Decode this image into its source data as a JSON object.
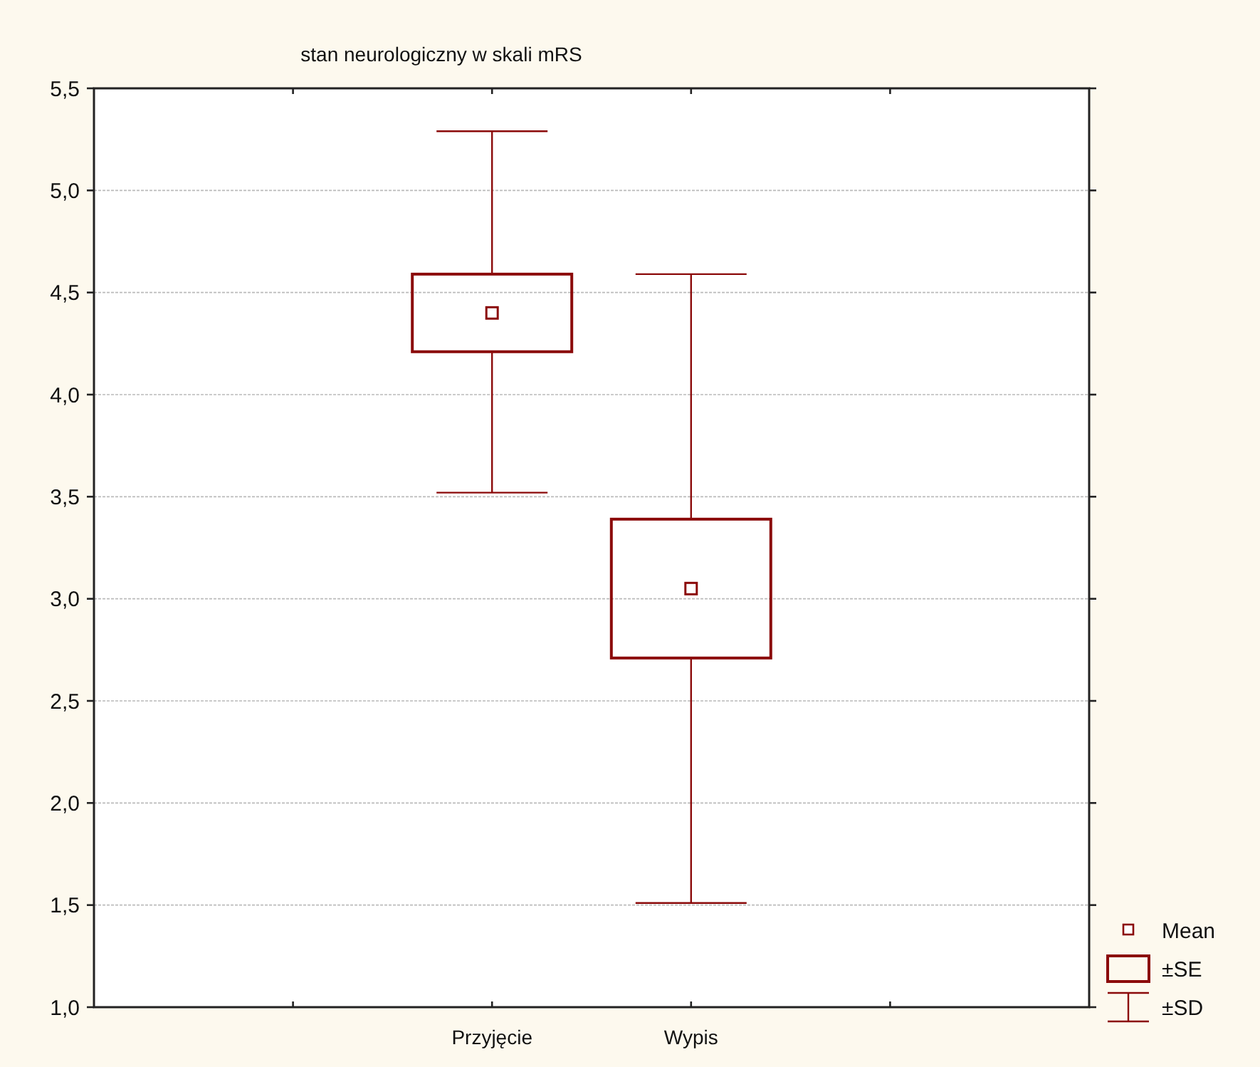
{
  "chart_data": {
    "type": "box",
    "title": "stan neurologiczny w skali mRS",
    "categories": [
      null,
      "Przyjęcie",
      "Wypis",
      null
    ],
    "color": "#8b0a0a",
    "boxes": [
      null,
      {
        "low": 3.52,
        "q1": 4.21,
        "q3": 4.59,
        "high": 5.29,
        "mean": 4.4
      },
      {
        "low": 1.51,
        "q1": 2.71,
        "q3": 3.39,
        "high": 4.59,
        "mean": 3.05
      },
      null
    ],
    "ylim": [
      1,
      5.5
    ],
    "yticks": [
      {
        "value": 1,
        "label": "1,0"
      },
      {
        "value": 1.5,
        "label": "1,5"
      },
      {
        "value": 2,
        "label": "2,0"
      },
      {
        "value": 2.5,
        "label": "2,5"
      },
      {
        "value": 3,
        "label": "3,0"
      },
      {
        "value": 3.5,
        "label": "3,5"
      },
      {
        "value": 4,
        "label": "4,0"
      },
      {
        "value": 4.5,
        "label": "4,5"
      },
      {
        "value": 5,
        "label": "5,0"
      },
      {
        "value": 5.5,
        "label": "5,5"
      }
    ],
    "grid": "y",
    "annotations": [
      "Mean",
      "±SE",
      "±SD"
    ]
  }
}
